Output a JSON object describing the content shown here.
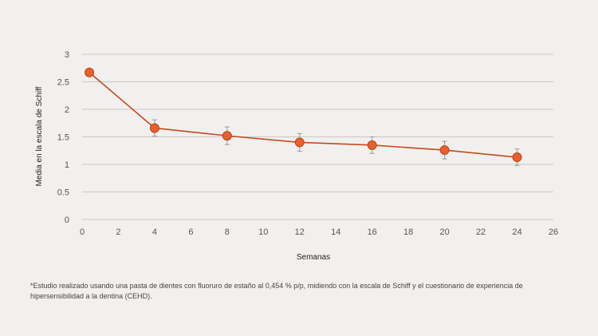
{
  "chart_data": {
    "type": "line",
    "xlabel": "Semanas",
    "ylabel": "Media en la escala de Schiff",
    "xlim": [
      0,
      26
    ],
    "ylim": [
      0,
      3
    ],
    "x_ticks": [
      "0",
      "2",
      "4",
      "6",
      "8",
      "10",
      "12",
      "14",
      "16",
      "18",
      "20",
      "22",
      "24",
      "26"
    ],
    "y_ticks": [
      "0",
      "0.5",
      "1",
      "1.5",
      "2",
      "2.5",
      "3"
    ],
    "grid": "horizontal",
    "series": [
      {
        "x": [
          0.4,
          4,
          8,
          12,
          16,
          20,
          24
        ],
        "values": [
          2.67,
          1.66,
          1.52,
          1.4,
          1.35,
          1.26,
          1.13
        ],
        "error": [
          0,
          0.15,
          0.16,
          0.16,
          0.15,
          0.16,
          0.15
        ],
        "color": "#e8602c",
        "line_color": "#c44a1c"
      }
    ]
  },
  "footnote": {
    "line1": "*Estudio realizado usando una pasta de dientes con fluoruro de estaño al 0,454 % p/p, midiendo con la escala de Schiff y el cuestionario de experiencia de",
    "line2": "hipersensibilidad a la dentina (CEHD)."
  },
  "colors": {
    "background": "#f2f0ee",
    "grid": "#c8c8c8",
    "marker": "#e8602c",
    "line": "#c44a1c"
  }
}
